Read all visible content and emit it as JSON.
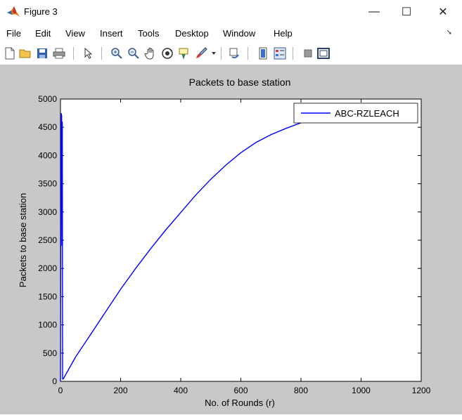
{
  "window": {
    "title": "Figure 3",
    "minimize_glyph": "—",
    "maximize_glyph": "☐",
    "close_glyph": "✕"
  },
  "menu": {
    "items": [
      "File",
      "Edit",
      "View",
      "Insert",
      "Tools",
      "Desktop",
      "Window",
      "Help"
    ],
    "overflow_glyph": "➘"
  },
  "toolbar": {
    "icons": [
      "new-figure-icon",
      "open-file-icon",
      "save-icon",
      "print-icon",
      "pointer-icon",
      "zoom-in-icon",
      "zoom-out-icon",
      "pan-icon",
      "rotate-3d-icon",
      "data-cursor-icon",
      "brush-icon",
      "link-plot-icon",
      "colorbar-icon",
      "legend-icon",
      "hide-plot-tools-icon",
      "show-plot-tools-icon"
    ]
  },
  "chart_data": {
    "type": "line",
    "title": "Packets to base station",
    "xlabel": "No. of Rounds (r)",
    "ylabel": "Packets to base station",
    "xlim": [
      0,
      1200
    ],
    "ylim": [
      0,
      5000
    ],
    "xticks": [
      0,
      200,
      400,
      600,
      800,
      1000,
      1200
    ],
    "yticks": [
      0,
      500,
      1000,
      1500,
      2000,
      2500,
      3000,
      3500,
      4000,
      4500,
      5000
    ],
    "grid": false,
    "legend_position": "top-right",
    "series": [
      {
        "name": "ABC-RZLEACH",
        "color": "#0000ff",
        "x": [
          0,
          2,
          4,
          5,
          6,
          7,
          8,
          10,
          50,
          100,
          150,
          200,
          250,
          300,
          350,
          400,
          450,
          500,
          550,
          600,
          650,
          700,
          750,
          800,
          825
        ],
        "y": [
          0,
          4750,
          4700,
          2400,
          4600,
          50,
          40,
          50,
          430,
          830,
          1230,
          1630,
          2000,
          2350,
          2680,
          2990,
          3300,
          3580,
          3830,
          4050,
          4230,
          4370,
          4480,
          4580,
          4630
        ]
      }
    ]
  }
}
